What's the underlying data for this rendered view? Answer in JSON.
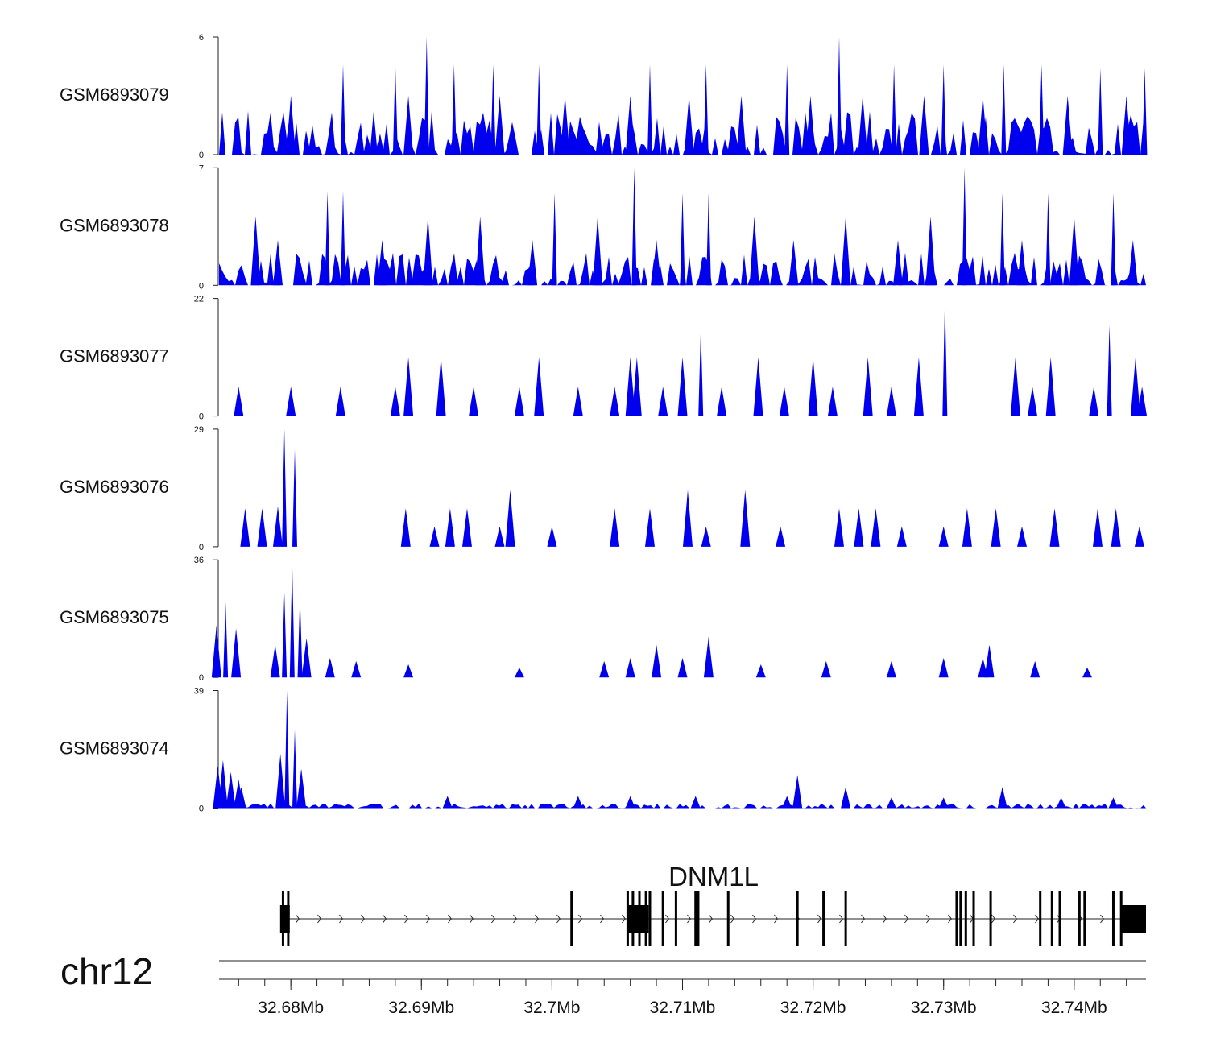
{
  "chart_data": {
    "type": "area",
    "title": "",
    "region": {
      "chromosome": "chr12",
      "start_mb": 32.6745,
      "end_mb": 32.7455
    },
    "fill_color": "#0000ee",
    "tracks": [
      {
        "name": "GSM6893079",
        "ylim": [
          0,
          6
        ],
        "ytick_labels": [
          "0",
          "6"
        ],
        "peaks": [
          {
            "pos": 32.6904,
            "value": 6
          },
          {
            "pos": 32.722,
            "value": 6
          },
          {
            "pos": 32.684,
            "value": 4.6
          },
          {
            "pos": 32.688,
            "value": 4.6
          },
          {
            "pos": 32.6925,
            "value": 4.6
          },
          {
            "pos": 32.6955,
            "value": 4.6
          },
          {
            "pos": 32.699,
            "value": 4.6
          },
          {
            "pos": 32.7075,
            "value": 4.6
          },
          {
            "pos": 32.7118,
            "value": 4.6
          },
          {
            "pos": 32.718,
            "value": 4.6
          },
          {
            "pos": 32.7262,
            "value": 4.6
          },
          {
            "pos": 32.73,
            "value": 4.6
          },
          {
            "pos": 32.7346,
            "value": 4.6
          },
          {
            "pos": 32.7375,
            "value": 4.6
          },
          {
            "pos": 32.742,
            "value": 4.4
          },
          {
            "pos": 32.7454,
            "value": 4.4
          },
          {
            "pos": 32.68,
            "value": 3.0
          },
          {
            "pos": 32.689,
            "value": 3.0
          },
          {
            "pos": 32.696,
            "value": 3.0
          },
          {
            "pos": 32.701,
            "value": 3.0
          },
          {
            "pos": 32.706,
            "value": 3.0
          },
          {
            "pos": 32.7105,
            "value": 3.0
          },
          {
            "pos": 32.7145,
            "value": 3.0
          },
          {
            "pos": 32.7198,
            "value": 3.0
          },
          {
            "pos": 32.7238,
            "value": 3.0
          },
          {
            "pos": 32.7285,
            "value": 3.0
          },
          {
            "pos": 32.733,
            "value": 3.0
          },
          {
            "pos": 32.7395,
            "value": 3.0
          },
          {
            "pos": 32.744,
            "value": 3.0
          }
        ],
        "baseline_level": 1.5
      },
      {
        "name": "GSM6893078",
        "ylim": [
          0,
          7
        ],
        "ytick_labels": [
          "0",
          "7"
        ],
        "peaks": [
          {
            "pos": 32.7063,
            "value": 7
          },
          {
            "pos": 32.7316,
            "value": 7
          },
          {
            "pos": 32.6828,
            "value": 5.6
          },
          {
            "pos": 32.684,
            "value": 5.6
          },
          {
            "pos": 32.7002,
            "value": 5.5
          },
          {
            "pos": 32.71,
            "value": 5.5
          },
          {
            "pos": 32.712,
            "value": 5.5
          },
          {
            "pos": 32.7345,
            "value": 5.5
          },
          {
            "pos": 32.738,
            "value": 5.5
          },
          {
            "pos": 32.743,
            "value": 5.5
          },
          {
            "pos": 32.6773,
            "value": 4.1
          },
          {
            "pos": 32.6905,
            "value": 4.1
          },
          {
            "pos": 32.6945,
            "value": 4.1
          },
          {
            "pos": 32.7035,
            "value": 4.1
          },
          {
            "pos": 32.7155,
            "value": 4.1
          },
          {
            "pos": 32.7225,
            "value": 4.1
          },
          {
            "pos": 32.729,
            "value": 4.1
          },
          {
            "pos": 32.74,
            "value": 4.1
          },
          {
            "pos": 32.679,
            "value": 2.7
          },
          {
            "pos": 32.687,
            "value": 2.7
          },
          {
            "pos": 32.6985,
            "value": 2.7
          },
          {
            "pos": 32.708,
            "value": 2.7
          },
          {
            "pos": 32.7185,
            "value": 2.7
          },
          {
            "pos": 32.7265,
            "value": 2.7
          },
          {
            "pos": 32.736,
            "value": 2.7
          },
          {
            "pos": 32.7445,
            "value": 2.7
          }
        ],
        "baseline_level": 1.3
      },
      {
        "name": "GSM6893077",
        "ylim": [
          0,
          22
        ],
        "ytick_labels": [
          "0",
          "22"
        ],
        "peaks": [
          {
            "pos": 32.7301,
            "value": 22
          },
          {
            "pos": 32.7427,
            "value": 17
          },
          {
            "pos": 32.7114,
            "value": 16.5
          },
          {
            "pos": 32.7281,
            "value": 11
          },
          {
            "pos": 32.689,
            "value": 11
          },
          {
            "pos": 32.6915,
            "value": 11
          },
          {
            "pos": 32.699,
            "value": 11
          },
          {
            "pos": 32.706,
            "value": 11
          },
          {
            "pos": 32.7065,
            "value": 11
          },
          {
            "pos": 32.71,
            "value": 11
          },
          {
            "pos": 32.7158,
            "value": 11
          },
          {
            "pos": 32.72,
            "value": 11
          },
          {
            "pos": 32.7242,
            "value": 11
          },
          {
            "pos": 32.7355,
            "value": 11
          },
          {
            "pos": 32.7382,
            "value": 11
          },
          {
            "pos": 32.7447,
            "value": 11
          },
          {
            "pos": 32.676,
            "value": 5.5
          },
          {
            "pos": 32.68,
            "value": 5.5
          },
          {
            "pos": 32.6838,
            "value": 5.5
          },
          {
            "pos": 32.688,
            "value": 5.5
          },
          {
            "pos": 32.694,
            "value": 5.5
          },
          {
            "pos": 32.6975,
            "value": 5.5
          },
          {
            "pos": 32.702,
            "value": 5.5
          },
          {
            "pos": 32.7048,
            "value": 5.5
          },
          {
            "pos": 32.7085,
            "value": 5.5
          },
          {
            "pos": 32.713,
            "value": 5.5
          },
          {
            "pos": 32.7178,
            "value": 5.5
          },
          {
            "pos": 32.7215,
            "value": 5.5
          },
          {
            "pos": 32.726,
            "value": 5.5
          },
          {
            "pos": 32.7368,
            "value": 5.5
          },
          {
            "pos": 32.7415,
            "value": 5.5
          },
          {
            "pos": 32.7452,
            "value": 5.5
          }
        ],
        "baseline_level": 0
      },
      {
        "name": "GSM6893076",
        "ylim": [
          0,
          29
        ],
        "ytick_labels": [
          "0",
          "29"
        ],
        "peaks": [
          {
            "pos": 32.6795,
            "value": 29
          },
          {
            "pos": 32.6803,
            "value": 24
          },
          {
            "pos": 32.679,
            "value": 10
          },
          {
            "pos": 32.6968,
            "value": 14
          },
          {
            "pos": 32.7104,
            "value": 14
          },
          {
            "pos": 32.7148,
            "value": 14
          },
          {
            "pos": 32.6765,
            "value": 9.5
          },
          {
            "pos": 32.6778,
            "value": 9.5
          },
          {
            "pos": 32.6888,
            "value": 9.5
          },
          {
            "pos": 32.6922,
            "value": 9.5
          },
          {
            "pos": 32.6935,
            "value": 9.5
          },
          {
            "pos": 32.7048,
            "value": 9.5
          },
          {
            "pos": 32.7075,
            "value": 9.5
          },
          {
            "pos": 32.722,
            "value": 9.5
          },
          {
            "pos": 32.7235,
            "value": 9.5
          },
          {
            "pos": 32.7248,
            "value": 9.5
          },
          {
            "pos": 32.7318,
            "value": 9.5
          },
          {
            "pos": 32.734,
            "value": 9.5
          },
          {
            "pos": 32.7385,
            "value": 9.5
          },
          {
            "pos": 32.7418,
            "value": 9.5
          },
          {
            "pos": 32.7432,
            "value": 9.5
          },
          {
            "pos": 32.691,
            "value": 5
          },
          {
            "pos": 32.696,
            "value": 5
          },
          {
            "pos": 32.7,
            "value": 5
          },
          {
            "pos": 32.7118,
            "value": 5
          },
          {
            "pos": 32.7175,
            "value": 5
          },
          {
            "pos": 32.7268,
            "value": 5
          },
          {
            "pos": 32.73,
            "value": 5
          },
          {
            "pos": 32.736,
            "value": 5
          },
          {
            "pos": 32.745,
            "value": 5
          }
        ],
        "baseline_level": 0
      },
      {
        "name": "GSM6893075",
        "ylim": [
          0,
          36
        ],
        "ytick_labels": [
          "0",
          "36"
        ],
        "peaks": [
          {
            "pos": 32.6801,
            "value": 36
          },
          {
            "pos": 32.6795,
            "value": 26
          },
          {
            "pos": 32.6807,
            "value": 25
          },
          {
            "pos": 32.675,
            "value": 23
          },
          {
            "pos": 32.6743,
            "value": 16
          },
          {
            "pos": 32.6758,
            "value": 15
          },
          {
            "pos": 32.6812,
            "value": 12
          },
          {
            "pos": 32.6788,
            "value": 10
          },
          {
            "pos": 32.712,
            "value": 12.5
          },
          {
            "pos": 32.708,
            "value": 10
          },
          {
            "pos": 32.7335,
            "value": 10
          },
          {
            "pos": 32.683,
            "value": 6
          },
          {
            "pos": 32.685,
            "value": 5
          },
          {
            "pos": 32.689,
            "value": 4
          },
          {
            "pos": 32.6975,
            "value": 3
          },
          {
            "pos": 32.704,
            "value": 5
          },
          {
            "pos": 32.706,
            "value": 6
          },
          {
            "pos": 32.71,
            "value": 6
          },
          {
            "pos": 32.716,
            "value": 4
          },
          {
            "pos": 32.721,
            "value": 5
          },
          {
            "pos": 32.726,
            "value": 5
          },
          {
            "pos": 32.73,
            "value": 6
          },
          {
            "pos": 32.733,
            "value": 6
          },
          {
            "pos": 32.737,
            "value": 5
          },
          {
            "pos": 32.741,
            "value": 3
          }
        ],
        "baseline_level": 0
      },
      {
        "name": "GSM6893074",
        "ylim": [
          0,
          39
        ],
        "ytick_labels": [
          "0",
          "39"
        ],
        "peaks": [
          {
            "pos": 32.6797,
            "value": 39
          },
          {
            "pos": 32.6803,
            "value": 26
          },
          {
            "pos": 32.6792,
            "value": 18
          },
          {
            "pos": 32.6808,
            "value": 13
          },
          {
            "pos": 32.6744,
            "value": 14
          },
          {
            "pos": 32.6748,
            "value": 16
          },
          {
            "pos": 32.6754,
            "value": 12
          },
          {
            "pos": 32.676,
            "value": 9.5
          },
          {
            "pos": 32.6762,
            "value": 7
          },
          {
            "pos": 32.7188,
            "value": 11
          },
          {
            "pos": 32.7225,
            "value": 7
          },
          {
            "pos": 32.7345,
            "value": 7
          },
          {
            "pos": 32.692,
            "value": 4
          },
          {
            "pos": 32.702,
            "value": 4
          },
          {
            "pos": 32.706,
            "value": 4
          },
          {
            "pos": 32.711,
            "value": 4
          },
          {
            "pos": 32.718,
            "value": 4
          },
          {
            "pos": 32.726,
            "value": 3.5
          },
          {
            "pos": 32.73,
            "value": 3.5
          },
          {
            "pos": 32.739,
            "value": 3.5
          },
          {
            "pos": 32.743,
            "value": 3.5
          }
        ],
        "baseline_level": 1
      }
    ],
    "gene": {
      "name": "DNM1L",
      "strand": "+",
      "start_mb": 32.6794,
      "end_mb": 32.7455,
      "exons_mb": [
        32.6794,
        32.6798,
        32.7015,
        32.7058,
        32.7062,
        32.7067,
        32.7072,
        32.7075,
        32.7085,
        32.7095,
        32.711,
        32.7112,
        32.7135,
        32.7188,
        32.7208,
        32.7225,
        32.731,
        32.7313,
        32.7317,
        32.7323,
        32.7336,
        32.7374,
        32.7383,
        32.7389,
        32.7404,
        32.7408,
        32.743,
        32.7436
      ],
      "big_exon_blocks_mb": [
        [
          32.7058,
          32.7074
        ],
        [
          32.7436,
          32.7455
        ]
      ]
    },
    "chromosome_label": "chr12",
    "xaxis": {
      "tick_values_mb": [
        32.68,
        32.69,
        32.7,
        32.71,
        32.72,
        32.73,
        32.74
      ],
      "tick_labels": [
        "32.68Mb",
        "32.69Mb",
        "32.7Mb",
        "32.71Mb",
        "32.72Mb",
        "32.73Mb",
        "32.74Mb"
      ],
      "minor_tick_step_mb": 0.002
    }
  }
}
